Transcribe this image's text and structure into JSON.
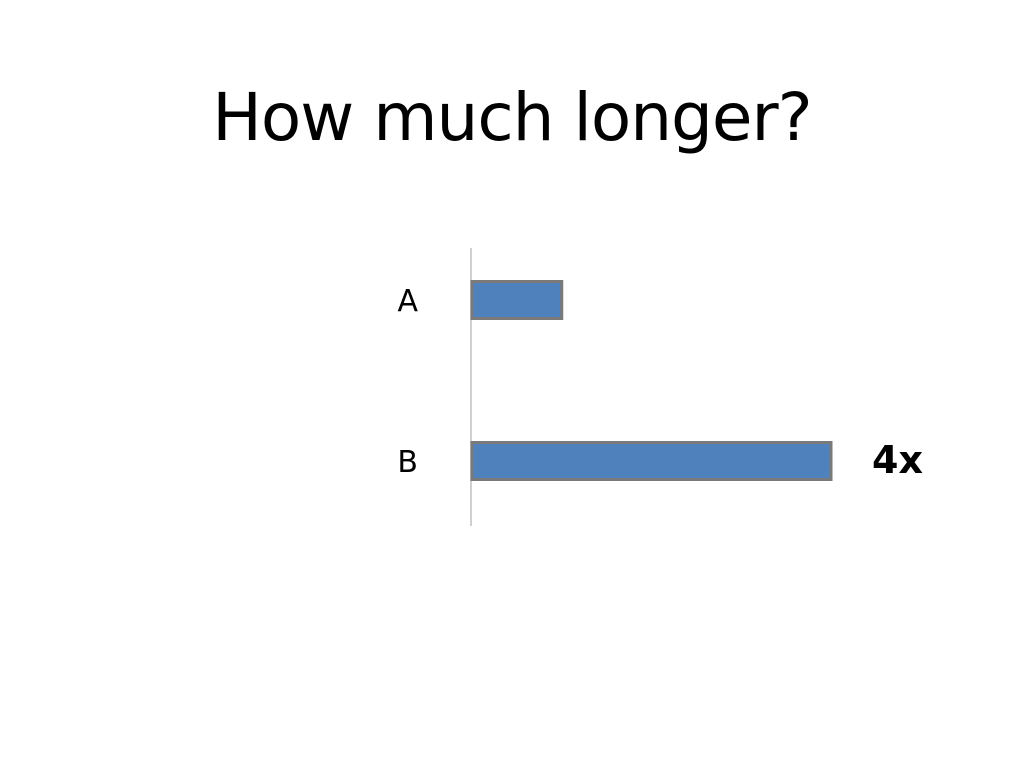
{
  "slide": {
    "title": "How much longer?"
  },
  "chart_data": {
    "type": "bar",
    "orientation": "horizontal",
    "categories": [
      "A",
      "B"
    ],
    "values": [
      1,
      4
    ],
    "annotation": "4x",
    "grid": false,
    "legend": "none",
    "colors": {
      "bar_fill": "#4f81bd",
      "bar_stroke": "#7a7a7a",
      "axis": "#d0d0d0"
    }
  }
}
